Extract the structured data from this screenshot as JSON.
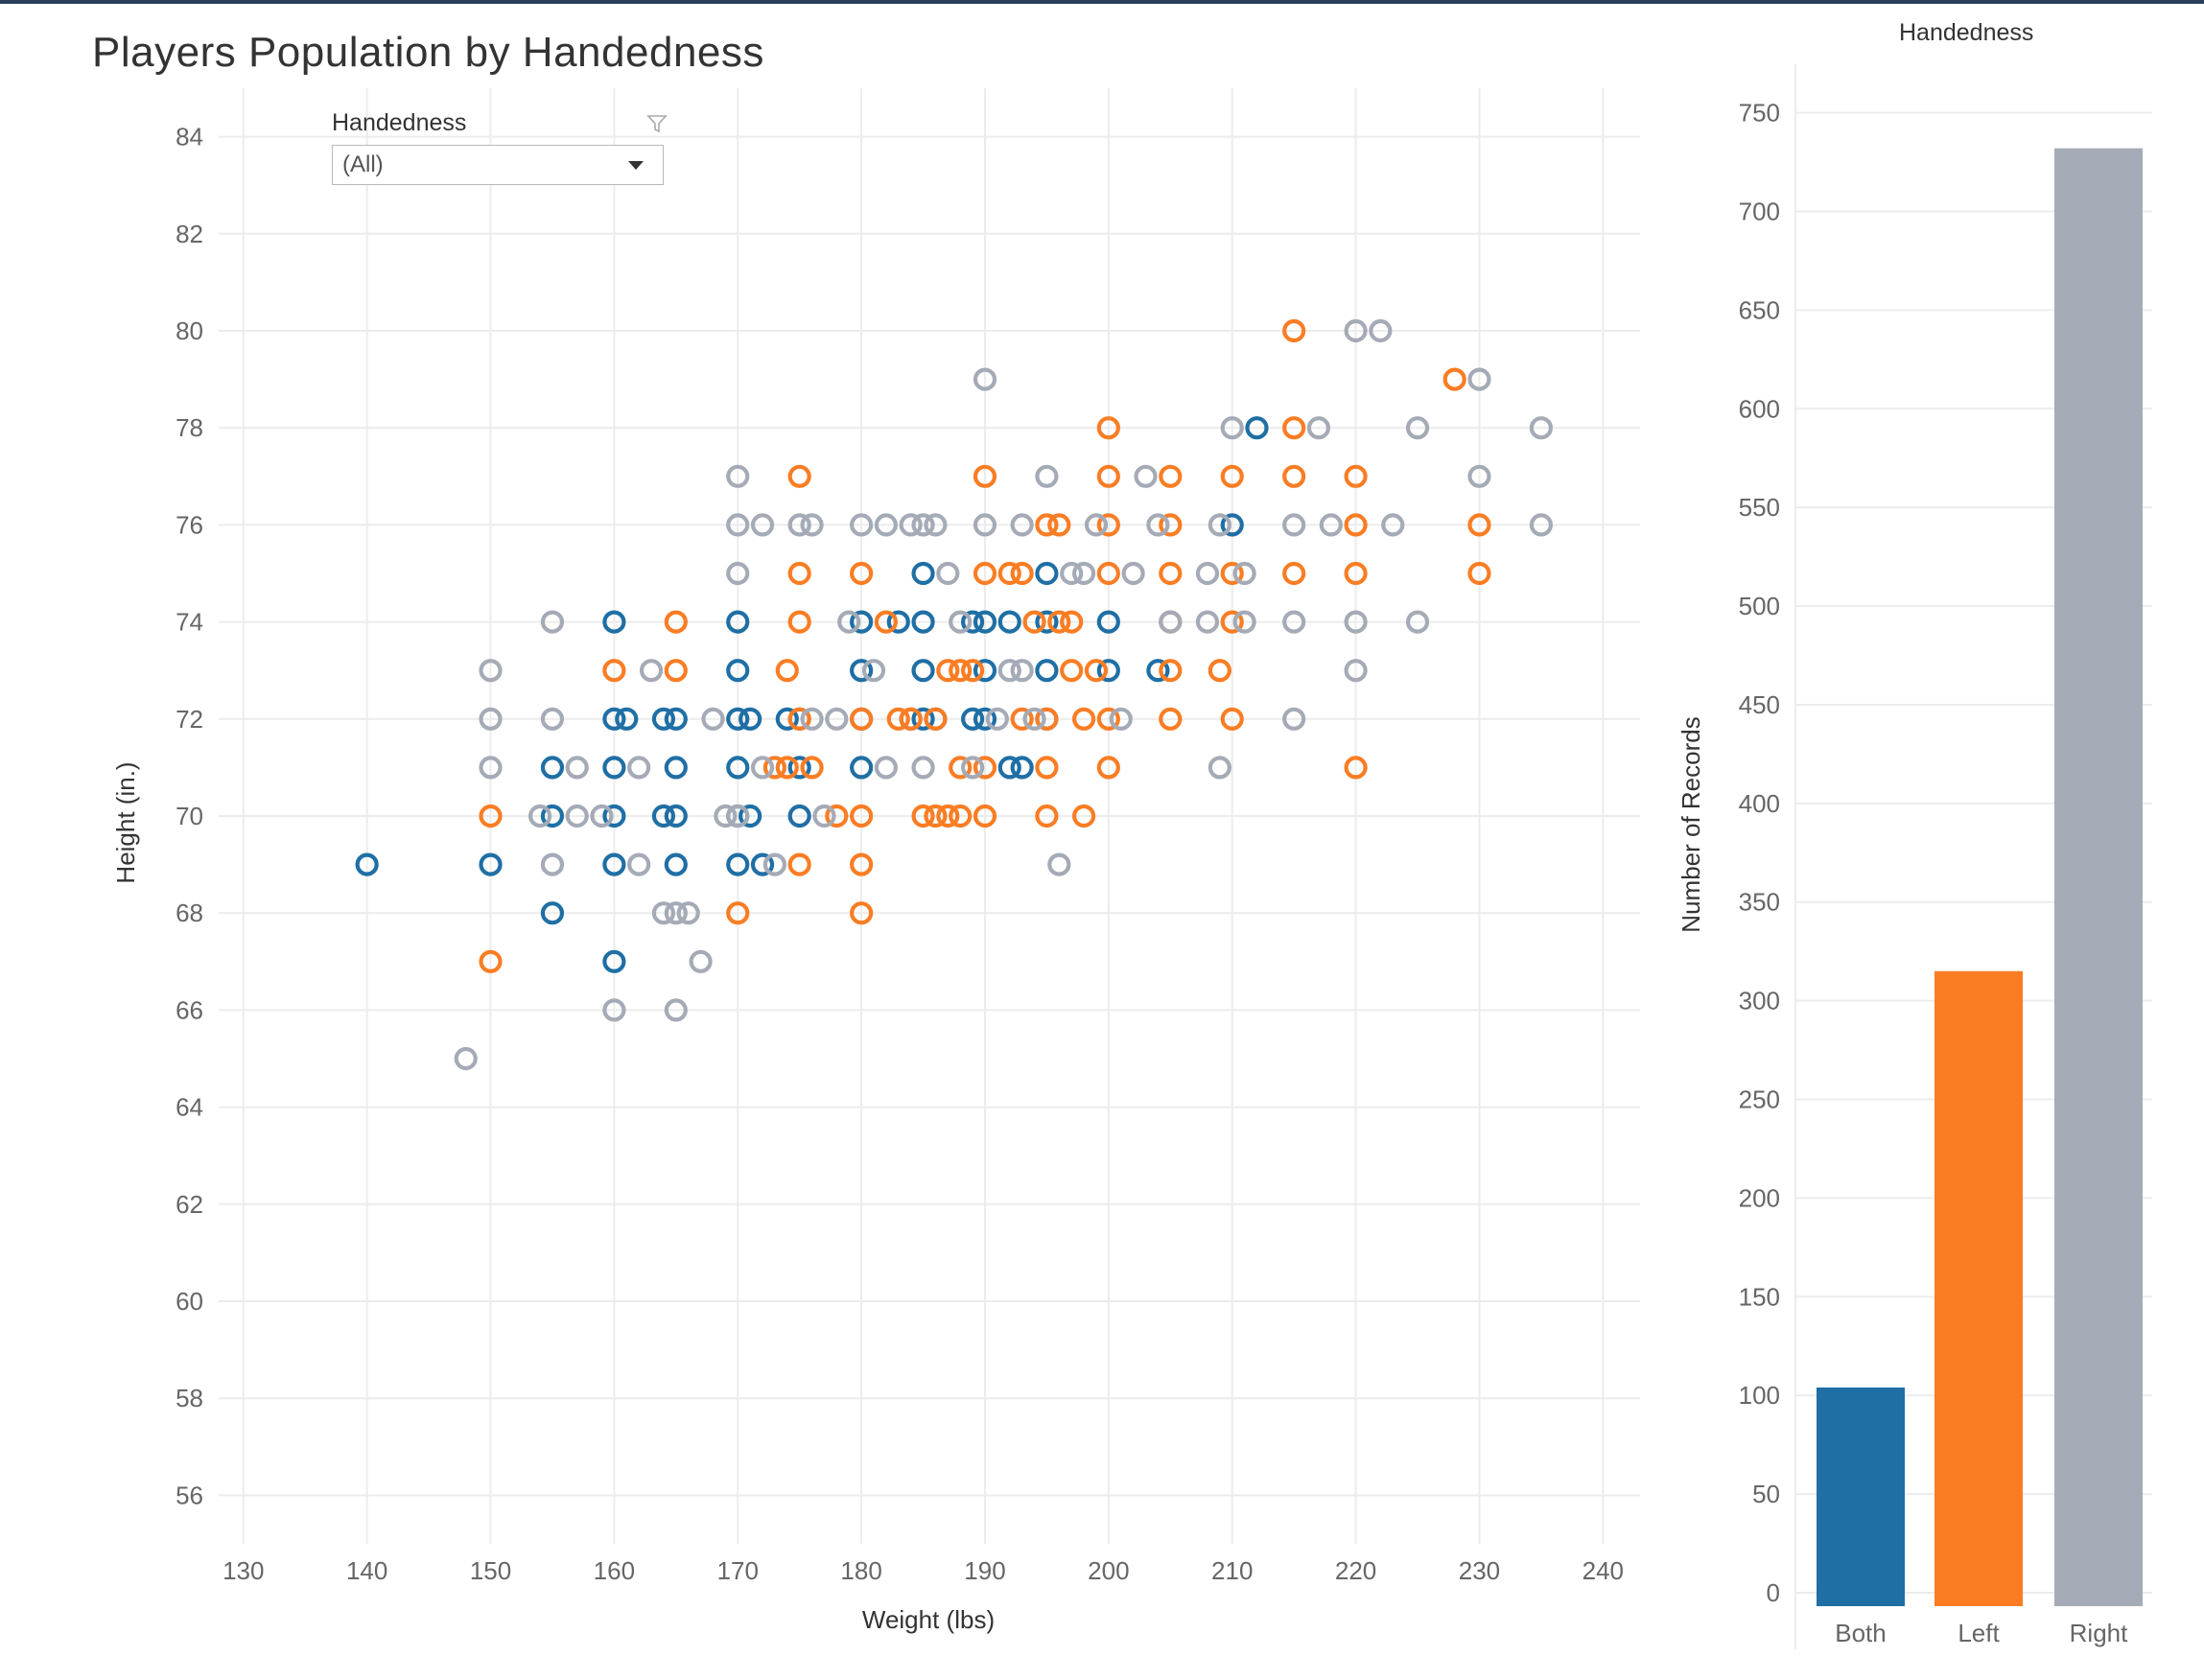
{
  "title": "Players Population by Handedness",
  "filter": {
    "label": "Handedness",
    "value": "(All)",
    "icon": "funnel-icon"
  },
  "colors": {
    "Both": "#1f6fa5",
    "Left": "#fa7d24",
    "Right": "#a5abb6",
    "grid": "#ececec"
  },
  "chart_data": [
    {
      "type": "scatter",
      "title": "",
      "xlabel": "Weight (lbs)",
      "ylabel": "Height (in.)",
      "xlim": [
        128,
        243
      ],
      "ylim": [
        55,
        85
      ],
      "xticks": [
        130,
        140,
        150,
        160,
        170,
        180,
        190,
        200,
        210,
        220,
        230,
        240
      ],
      "yticks": [
        56,
        58,
        60,
        62,
        64,
        66,
        68,
        70,
        72,
        74,
        76,
        78,
        80,
        82,
        84
      ],
      "series": [
        {
          "name": "Both",
          "points": [
            [
              140,
              69
            ],
            [
              150,
              69
            ],
            [
              155,
              71
            ],
            [
              155,
              70
            ],
            [
              155,
              68
            ],
            [
              160,
              74
            ],
            [
              160,
              72
            ],
            [
              161,
              72
            ],
            [
              160,
              71
            ],
            [
              160,
              70
            ],
            [
              160,
              69
            ],
            [
              160,
              67
            ],
            [
              164,
              72
            ],
            [
              165,
              72
            ],
            [
              165,
              71
            ],
            [
              164,
              70
            ],
            [
              165,
              70
            ],
            [
              165,
              69
            ],
            [
              170,
              74
            ],
            [
              170,
              73
            ],
            [
              170,
              72
            ],
            [
              171,
              72
            ],
            [
              170,
              71
            ],
            [
              170,
              70
            ],
            [
              171,
              70
            ],
            [
              170,
              69
            ],
            [
              172,
              69
            ],
            [
              174,
              72
            ],
            [
              175,
              72
            ],
            [
              175,
              71
            ],
            [
              175,
              70
            ],
            [
              180,
              74
            ],
            [
              180,
              73
            ],
            [
              180,
              72
            ],
            [
              180,
              71
            ],
            [
              183,
              74
            ],
            [
              185,
              75
            ],
            [
              185,
              74
            ],
            [
              185,
              73
            ],
            [
              185,
              72
            ],
            [
              184,
              72
            ],
            [
              186,
              72
            ],
            [
              189,
              74
            ],
            [
              190,
              74
            ],
            [
              190,
              73
            ],
            [
              190,
              72
            ],
            [
              189,
              72
            ],
            [
              192,
              74
            ],
            [
              195,
              75
            ],
            [
              195,
              74
            ],
            [
              195,
              73
            ],
            [
              195,
              72
            ],
            [
              192,
              71
            ],
            [
              193,
              71
            ],
            [
              200,
              74
            ],
            [
              200,
              73
            ],
            [
              204,
              73
            ],
            [
              210,
              76
            ],
            [
              212,
              78
            ]
          ]
        },
        {
          "name": "Left",
          "points": [
            [
              150,
              70
            ],
            [
              150,
              67
            ],
            [
              160,
              73
            ],
            [
              165,
              74
            ],
            [
              165,
              73
            ],
            [
              173,
              71
            ],
            [
              174,
              71
            ],
            [
              174,
              73
            ],
            [
              175,
              77
            ],
            [
              175,
              75
            ],
            [
              175,
              74
            ],
            [
              175,
              72
            ],
            [
              175,
              69
            ],
            [
              176,
              71
            ],
            [
              178,
              70
            ],
            [
              180,
              75
            ],
            [
              180,
              72
            ],
            [
              180,
              70
            ],
            [
              180,
              69
            ],
            [
              180,
              68
            ],
            [
              182,
              74
            ],
            [
              183,
              72
            ],
            [
              184,
              72
            ],
            [
              186,
              72
            ],
            [
              185,
              70
            ],
            [
              186,
              70
            ],
            [
              187,
              70
            ],
            [
              188,
              70
            ],
            [
              188,
              71
            ],
            [
              188,
              73
            ],
            [
              187,
              73
            ],
            [
              189,
              73
            ],
            [
              190,
              70
            ],
            [
              190,
              75
            ],
            [
              190,
              77
            ],
            [
              190,
              71
            ],
            [
              192,
              75
            ],
            [
              193,
              75
            ],
            [
              193,
              72
            ],
            [
              194,
              74
            ],
            [
              195,
              76
            ],
            [
              195,
              72
            ],
            [
              195,
              71
            ],
            [
              195,
              70
            ],
            [
              196,
              74
            ],
            [
              196,
              76
            ],
            [
              197,
              73
            ],
            [
              197,
              74
            ],
            [
              198,
              72
            ],
            [
              198,
              70
            ],
            [
              199,
              73
            ],
            [
              200,
              78
            ],
            [
              200,
              77
            ],
            [
              200,
              76
            ],
            [
              200,
              75
            ],
            [
              200,
              72
            ],
            [
              200,
              71
            ],
            [
              205,
              77
            ],
            [
              205,
              76
            ],
            [
              205,
              75
            ],
            [
              205,
              74
            ],
            [
              205,
              72
            ],
            [
              205,
              73
            ],
            [
              209,
              73
            ],
            [
              210,
              77
            ],
            [
              210,
              75
            ],
            [
              210,
              74
            ],
            [
              210,
              72
            ],
            [
              215,
              80
            ],
            [
              215,
              78
            ],
            [
              215,
              77
            ],
            [
              215,
              75
            ],
            [
              220,
              77
            ],
            [
              220,
              76
            ],
            [
              220,
              75
            ],
            [
              220,
              71
            ],
            [
              228,
              79
            ],
            [
              230,
              76
            ],
            [
              230,
              75
            ],
            [
              170,
              68
            ]
          ]
        },
        {
          "name": "Right",
          "points": [
            [
              148,
              65
            ],
            [
              150,
              73
            ],
            [
              150,
              72
            ],
            [
              150,
              71
            ],
            [
              154,
              70
            ],
            [
              155,
              74
            ],
            [
              155,
              72
            ],
            [
              155,
              69
            ],
            [
              157,
              71
            ],
            [
              157,
              70
            ],
            [
              159,
              70
            ],
            [
              160,
              66
            ],
            [
              162,
              71
            ],
            [
              162,
              69
            ],
            [
              163,
              73
            ],
            [
              165,
              68
            ],
            [
              164,
              68
            ],
            [
              165,
              66
            ],
            [
              166,
              68
            ],
            [
              167,
              67
            ],
            [
              168,
              72
            ],
            [
              169,
              70
            ],
            [
              170,
              77
            ],
            [
              170,
              76
            ],
            [
              170,
              75
            ],
            [
              172,
              76
            ],
            [
              172,
              71
            ],
            [
              173,
              69
            ],
            [
              175,
              76
            ],
            [
              176,
              76
            ],
            [
              176,
              72
            ],
            [
              177,
              70
            ],
            [
              178,
              72
            ],
            [
              179,
              74
            ],
            [
              180,
              76
            ],
            [
              181,
              73
            ],
            [
              182,
              76
            ],
            [
              182,
              71
            ],
            [
              184,
              76
            ],
            [
              185,
              76
            ],
            [
              186,
              76
            ],
            [
              185,
              71
            ],
            [
              187,
              75
            ],
            [
              188,
              74
            ],
            [
              189,
              71
            ],
            [
              190,
              79
            ],
            [
              190,
              76
            ],
            [
              191,
              72
            ],
            [
              192,
              73
            ],
            [
              193,
              76
            ],
            [
              193,
              73
            ],
            [
              194,
              72
            ],
            [
              196,
              69
            ],
            [
              195,
              77
            ],
            [
              197,
              75
            ],
            [
              198,
              75
            ],
            [
              199,
              76
            ],
            [
              201,
              72
            ],
            [
              202,
              75
            ],
            [
              203,
              77
            ],
            [
              204,
              76
            ],
            [
              205,
              74
            ],
            [
              208,
              75
            ],
            [
              208,
              74
            ],
            [
              209,
              71
            ],
            [
              210,
              78
            ],
            [
              209,
              76
            ],
            [
              211,
              74
            ],
            [
              211,
              75
            ],
            [
              215,
              76
            ],
            [
              215,
              74
            ],
            [
              215,
              72
            ],
            [
              217,
              78
            ],
            [
              218,
              76
            ],
            [
              220,
              80
            ],
            [
              222,
              80
            ],
            [
              220,
              74
            ],
            [
              220,
              73
            ],
            [
              223,
              76
            ],
            [
              225,
              78
            ],
            [
              225,
              74
            ],
            [
              230,
              79
            ],
            [
              230,
              77
            ],
            [
              235,
              78
            ],
            [
              235,
              76
            ],
            [
              170,
              70
            ]
          ]
        }
      ]
    },
    {
      "type": "bar",
      "title": "Handedness",
      "xlabel": "",
      "ylabel": "Number of Records",
      "categories": [
        "Both",
        "Left",
        "Right"
      ],
      "values": [
        104,
        315,
        732
      ],
      "ylim": [
        0,
        760
      ],
      "yticks": [
        0,
        50,
        100,
        150,
        200,
        250,
        300,
        350,
        400,
        450,
        500,
        550,
        600,
        650,
        700,
        750
      ]
    }
  ]
}
